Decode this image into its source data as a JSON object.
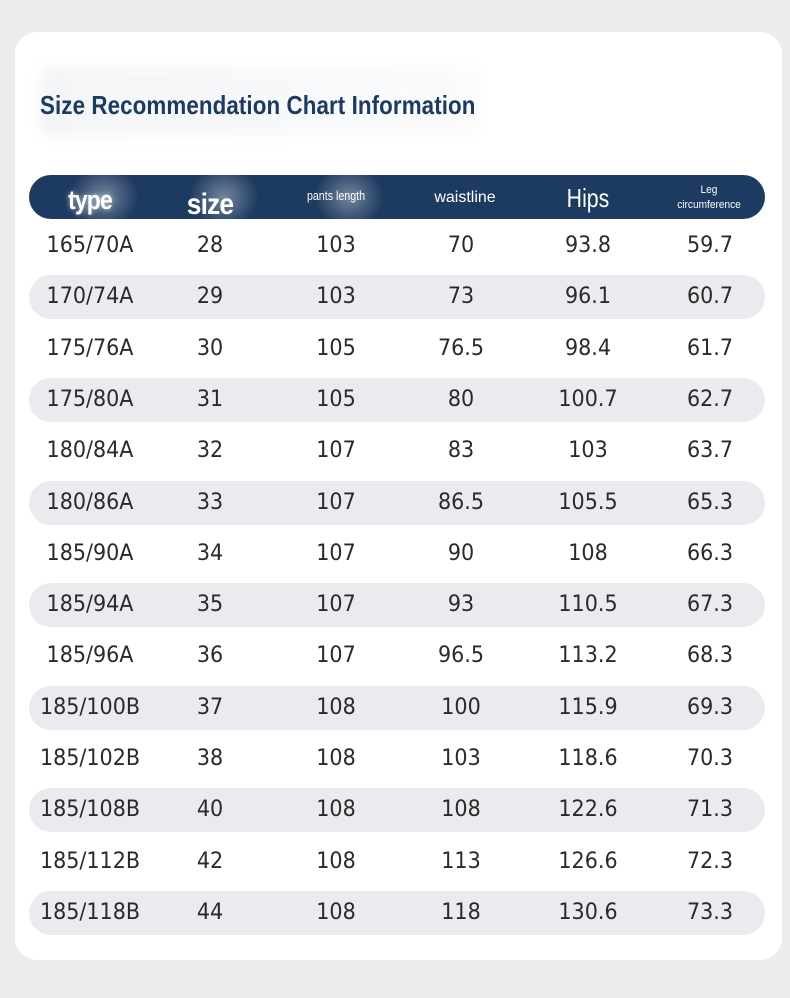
{
  "title": "Size Recommendation Chart Information",
  "header": [
    "type",
    "size",
    "pants length",
    "waistline",
    "Hips",
    "Leg circumference"
  ],
  "rows": [
    [
      "165/70A",
      "28",
      "103",
      "70",
      "93.8",
      "59.7"
    ],
    [
      "170/74A",
      "29",
      "103",
      "73",
      "96.1",
      "60.7"
    ],
    [
      "175/76A",
      "30",
      "105",
      "76.5",
      "98.4",
      "61.7"
    ],
    [
      "175/80A",
      "31",
      "105",
      "80",
      "100.7",
      "62.7"
    ],
    [
      "180/84A",
      "32",
      "107",
      "83",
      "103",
      "63.7"
    ],
    [
      "180/86A",
      "33",
      "107",
      "86.5",
      "105.5",
      "65.3"
    ],
    [
      "185/90A",
      "34",
      "107",
      "90",
      "108",
      "66.3"
    ],
    [
      "185/94A",
      "35",
      "107",
      "93",
      "110.5",
      "67.3"
    ],
    [
      "185/96A",
      "36",
      "107",
      "96.5",
      "113.2",
      "68.3"
    ],
    [
      "185/100B",
      "37",
      "108",
      "100",
      "115.9",
      "69.3"
    ],
    [
      "185/102B",
      "38",
      "108",
      "103",
      "118.6",
      "70.3"
    ],
    [
      "185/108B",
      "40",
      "108",
      "108",
      "122.6",
      "71.3"
    ],
    [
      "185/112B",
      "42",
      "108",
      "113",
      "126.6",
      "72.3"
    ],
    [
      "185/118B",
      "44",
      "108",
      "118",
      "130.6",
      "73.3"
    ]
  ],
  "colors": {
    "header_bg": "#1d3a60",
    "title": "#1d3a60",
    "row_shade": "#e9ebee"
  }
}
